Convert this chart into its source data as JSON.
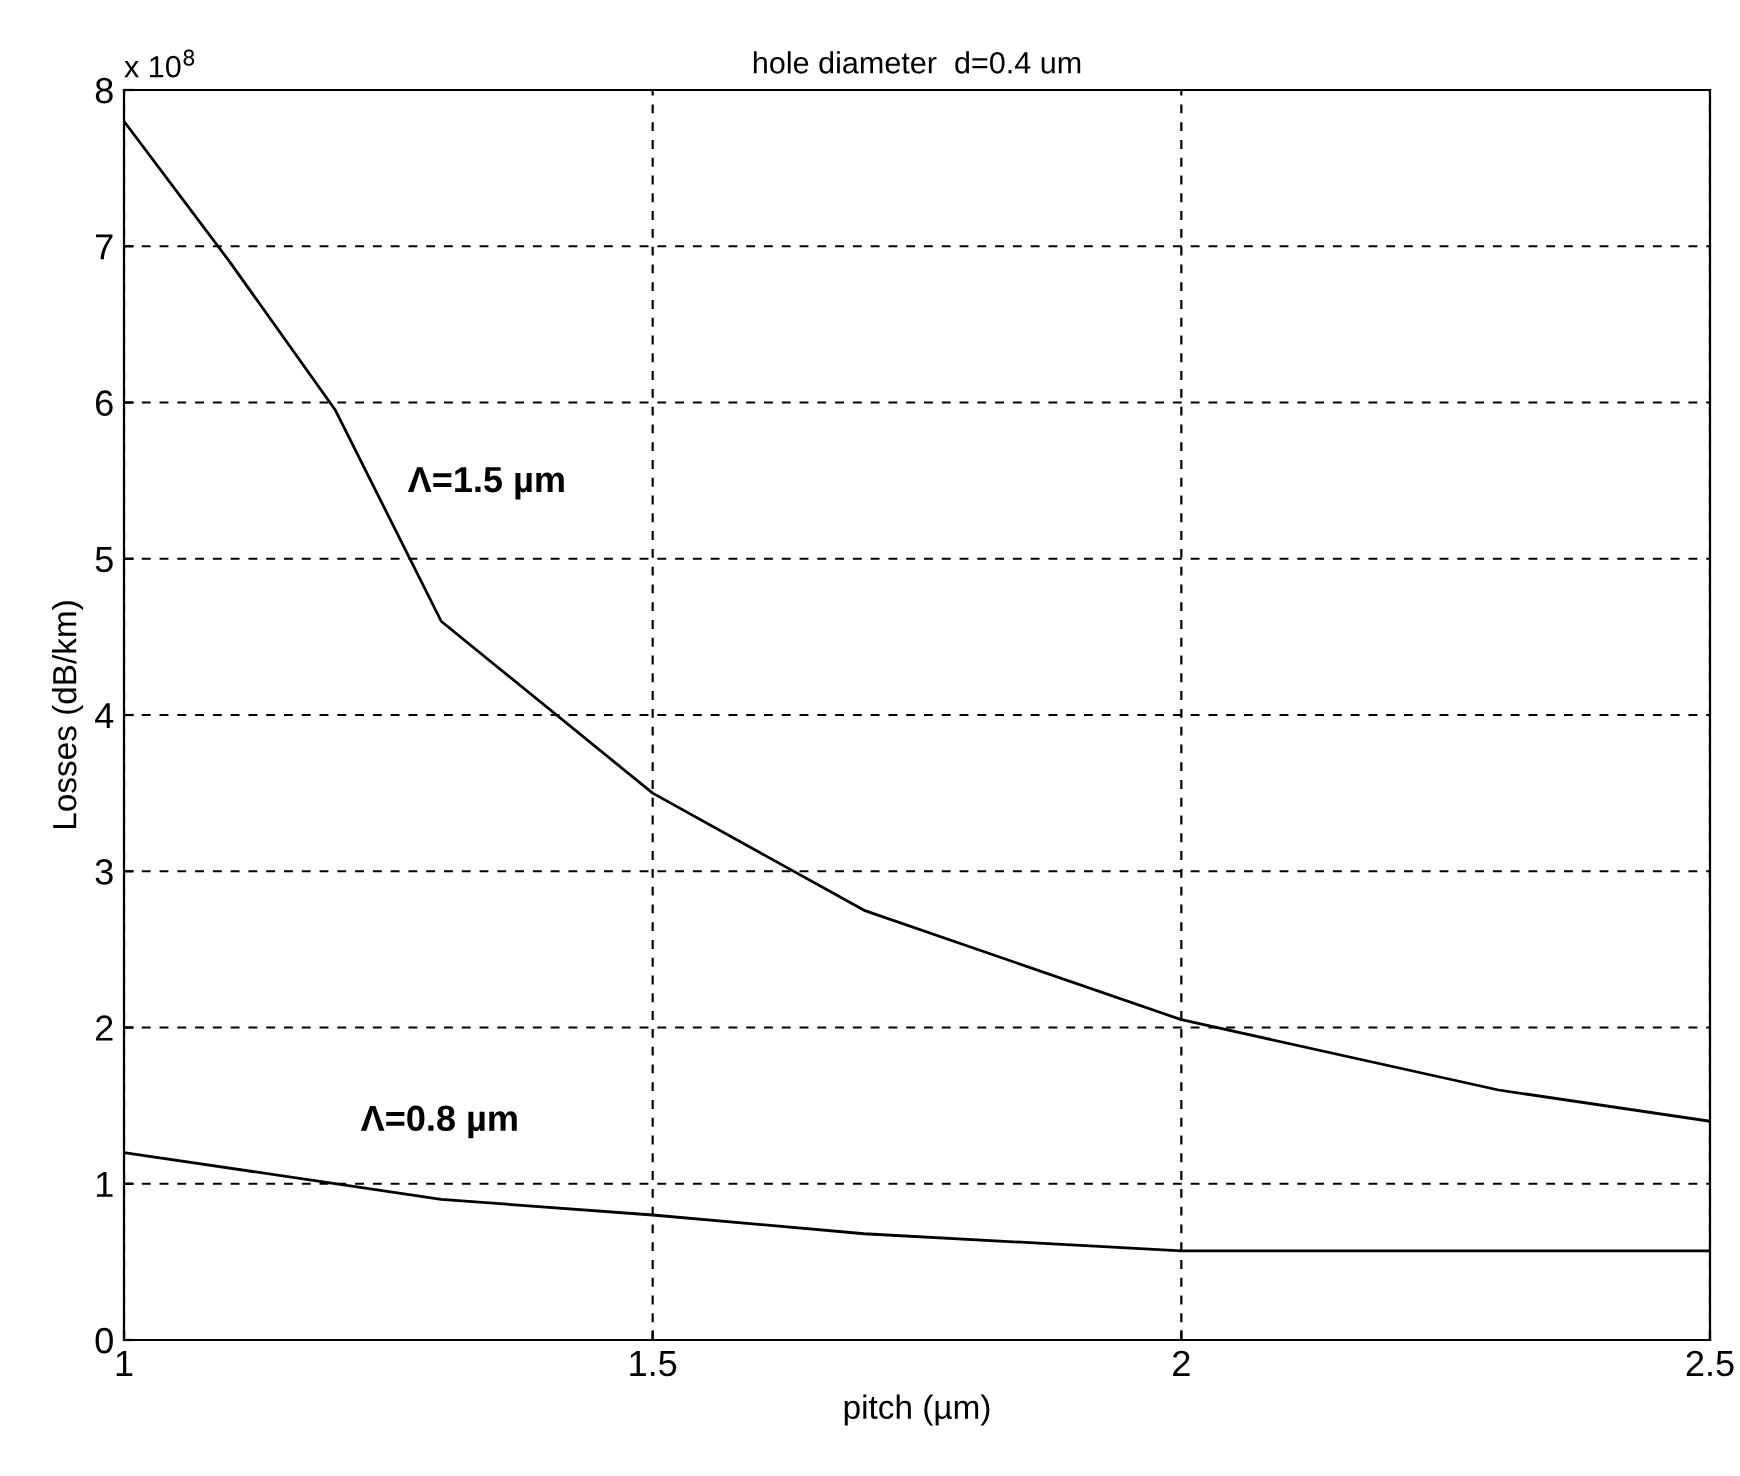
{
  "chart_data": {
    "type": "line",
    "title": "hole diameter  d=0.4 um",
    "xlabel": "pitch (µm)",
    "ylabel": "Losses (dB/km)",
    "series": [
      {
        "name": "Λ=1.5 µm",
        "color": "#000000",
        "x": [
          1,
          1.1,
          1.2,
          1.3,
          1.5,
          1.7,
          2.0,
          2.3,
          2.5
        ],
        "values": [
          7.8,
          6.9,
          5.95,
          4.6,
          3.5,
          2.75,
          2.05,
          1.6,
          1.4
        ]
      },
      {
        "name": "Λ=0.8 µm",
        "color": "#000000",
        "x": [
          1,
          1.3,
          1.5,
          1.7,
          2.0,
          2.5
        ],
        "values": [
          1.2,
          0.9,
          0.8,
          0.68,
          0.57,
          0.57
        ]
      }
    ],
    "annotations": [
      "x 10$^{8}$"
    ],
    "xlim": [
      1,
      2.5
    ],
    "xticks": [
      1,
      1.5,
      2,
      2.5
    ],
    "ylim": [
      0,
      8
    ],
    "yticks": [
      0,
      1,
      2,
      3,
      4,
      5,
      6,
      7,
      8
    ],
    "grid": true,
    "line_style": "solid",
    "marker": "none",
    "legend": false
  }
}
